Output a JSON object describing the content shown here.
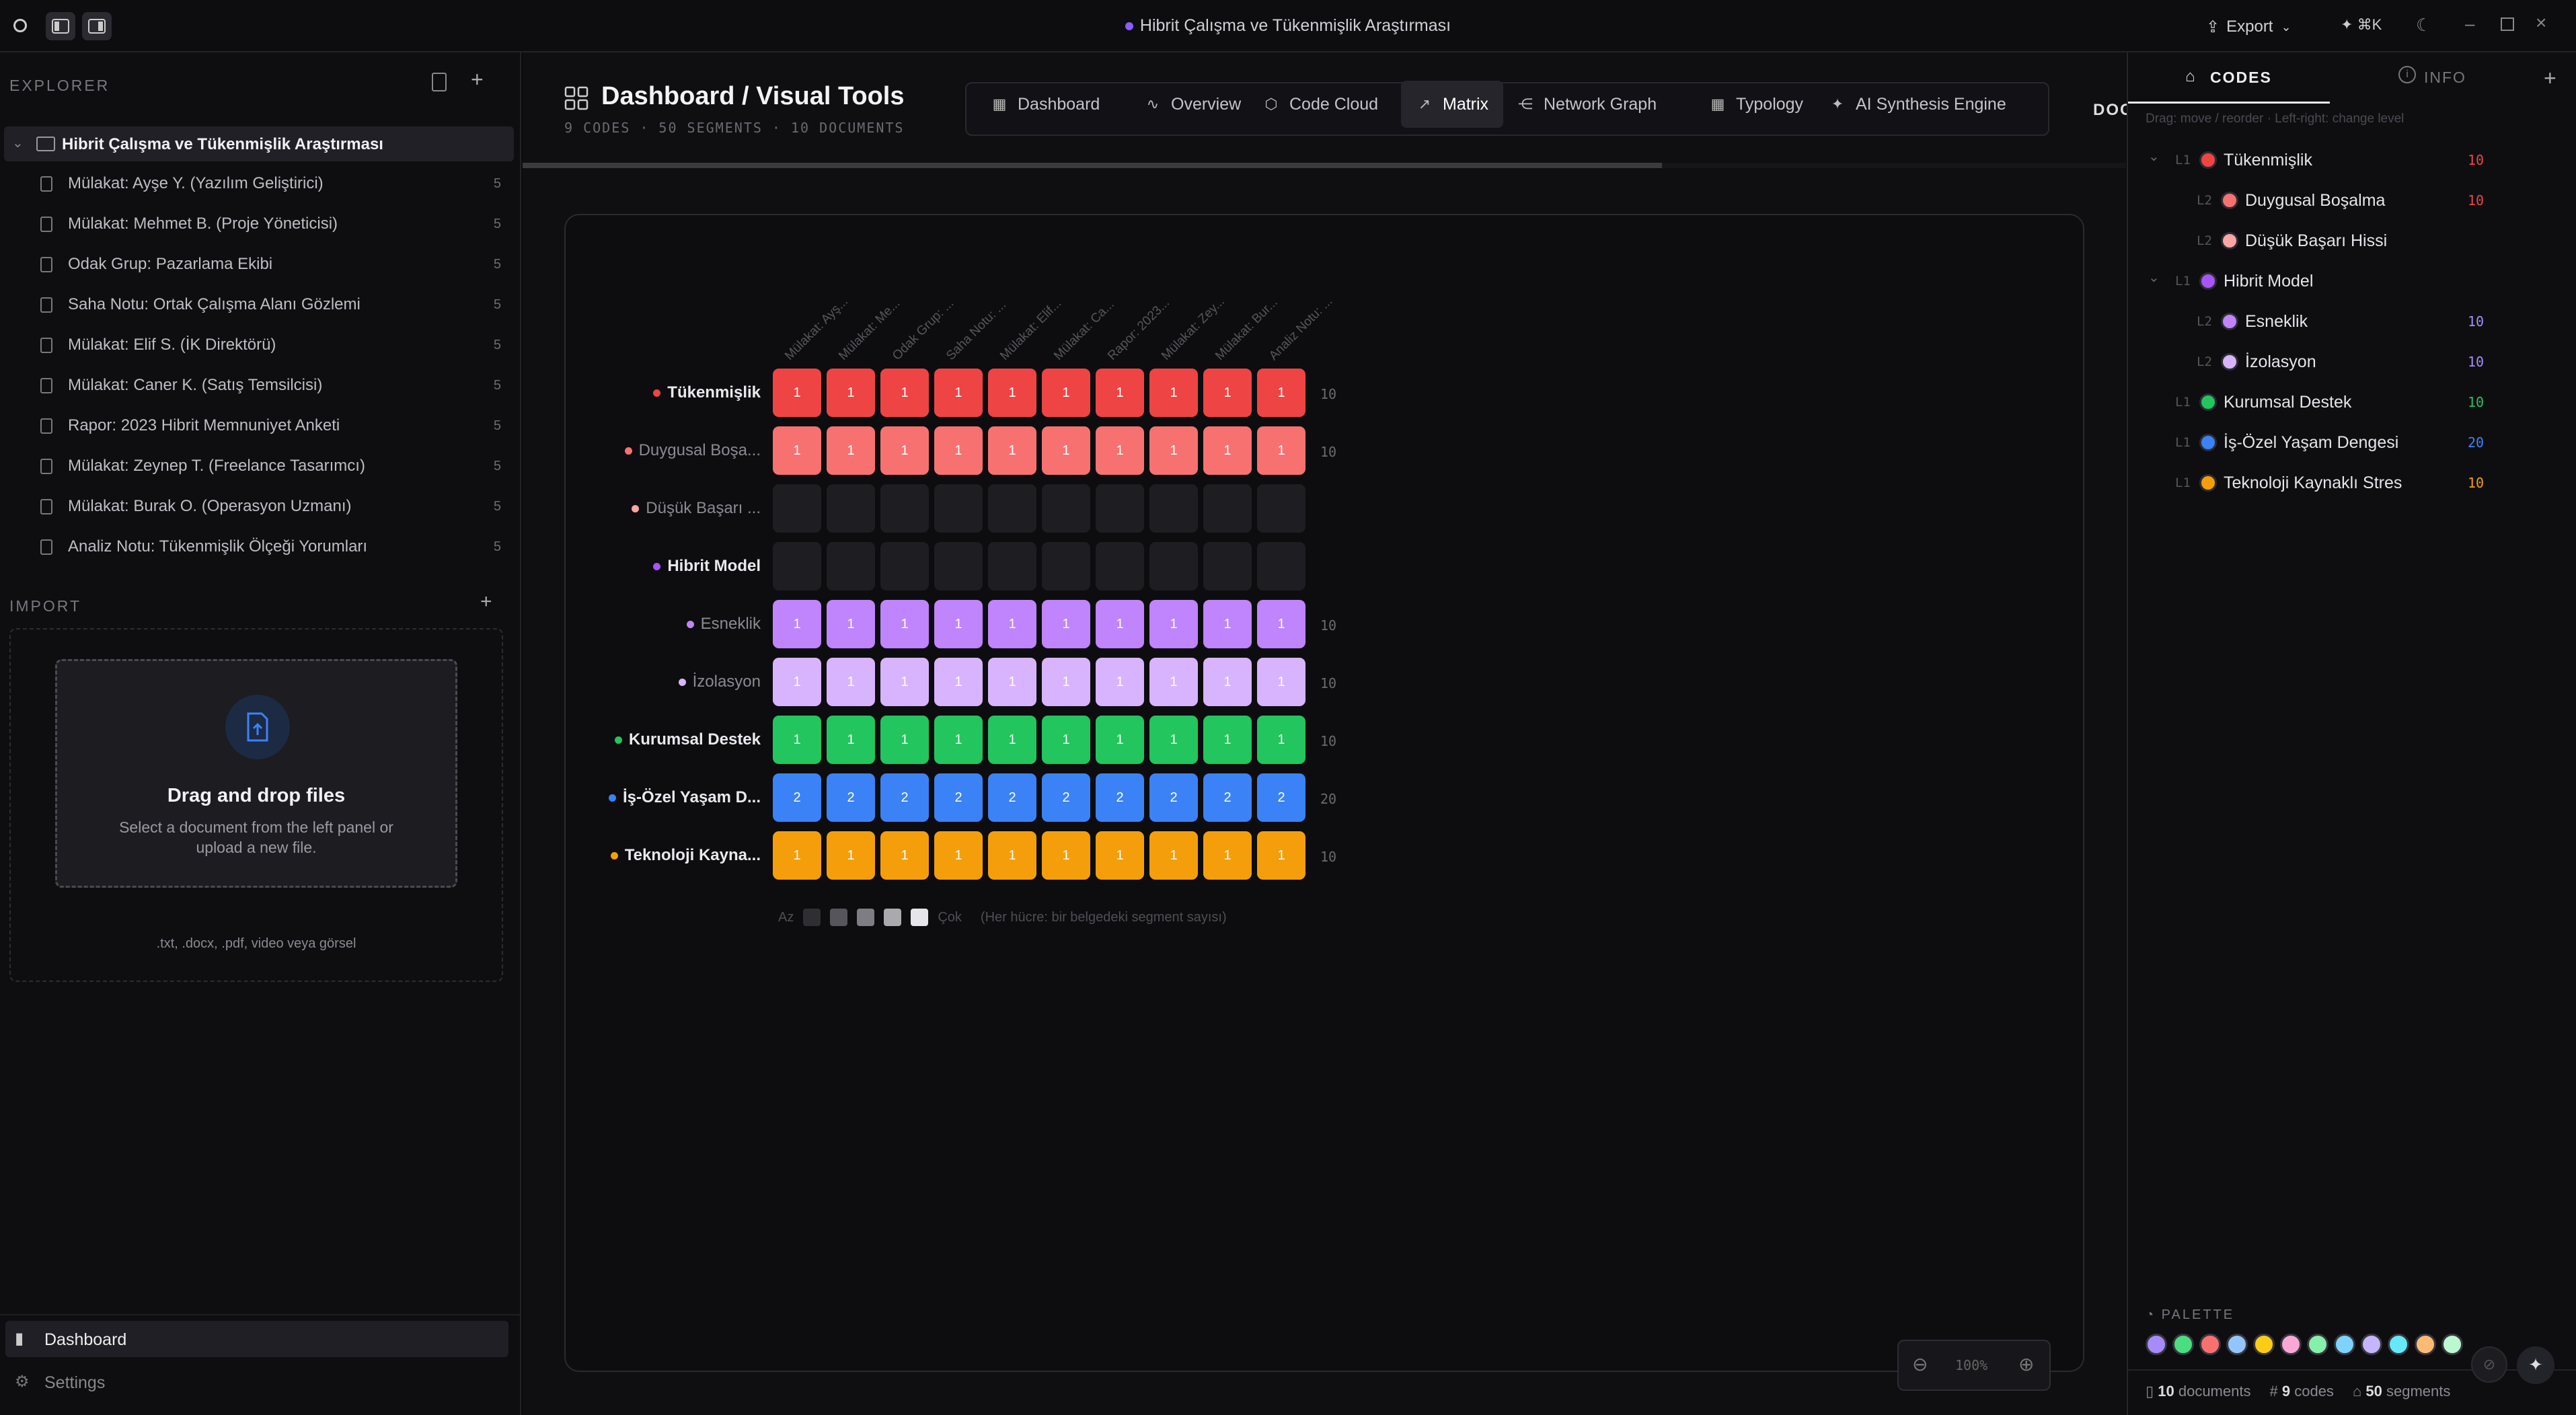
{
  "app": {
    "title": "Hibrit Çalışma ve Tükenmişlik Araştırması",
    "export_label": "Export",
    "shortcut": "⌘K"
  },
  "explorer": {
    "label": "EXPLORER",
    "project": "Hibrit Çalışma ve Tükenmişlik Araştırması",
    "documents": [
      {
        "name": "Mülakat: Ayşe Y. (Yazılım Geliştirici)",
        "count": "5"
      },
      {
        "name": "Mülakat: Mehmet B. (Proje Yöneticisi)",
        "count": "5"
      },
      {
        "name": "Odak Grup: Pazarlama Ekibi",
        "count": "5"
      },
      {
        "name": "Saha Notu: Ortak Çalışma Alanı Gözlemi",
        "count": "5"
      },
      {
        "name": "Mülakat: Elif S. (İK Direktörü)",
        "count": "5"
      },
      {
        "name": "Mülakat: Caner K. (Satış Temsilcisi)",
        "count": "5"
      },
      {
        "name": "Rapor: 2023 Hibrit Memnuniyet Anketi",
        "count": "5"
      },
      {
        "name": "Mülakat: Zeynep T. (Freelance Tasarımcı)",
        "count": "5"
      },
      {
        "name": "Mülakat: Burak O. (Operasyon Uzmanı)",
        "count": "5"
      },
      {
        "name": "Analiz Notu: Tükenmişlik Ölçeği Yorumları",
        "count": "5"
      }
    ]
  },
  "import": {
    "label": "IMPORT",
    "drop_title": "Drag and drop files",
    "drop_sub": "Select a document from the left panel or upload a new file.",
    "formats": ".txt, .docx, .pdf, video veya görsel"
  },
  "nav": {
    "dashboard": "Dashboard",
    "settings": "Settings"
  },
  "header": {
    "title": "Dashboard / Visual Tools",
    "stats": "9 CODES · 50 SEGMENTS · 10 DOCUMENTS",
    "cut_label": "DOC",
    "tabs": [
      {
        "label": "Dashboard",
        "icon": "grid-icon"
      },
      {
        "label": "Overview",
        "icon": "activity-icon"
      },
      {
        "label": "Code Cloud",
        "icon": "cube-icon"
      },
      {
        "label": "Matrix",
        "icon": "trend-icon",
        "active": true
      },
      {
        "label": "Network Graph",
        "icon": "share-icon"
      },
      {
        "label": "Typology",
        "icon": "grid-icon"
      },
      {
        "label": "AI Synthesis Engine",
        "icon": "sparkles-icon"
      }
    ]
  },
  "matrix": {
    "columns": [
      "Mülakat: Ayş...",
      "Mülakat: Me...",
      "Odak Grup: ...",
      "Saha Notu: ...",
      "Mülakat: Elif...",
      "Mülakat: Ca...",
      "Rapor: 2023...",
      "Mülakat: Zey...",
      "Mülakat: Bur...",
      "Analiz Notu: ..."
    ],
    "rows": [
      {
        "label": "Tükenmişlik",
        "bold": true,
        "color": "#ef4444",
        "cell_color": "#ef4444",
        "values": [
          "1",
          "1",
          "1",
          "1",
          "1",
          "1",
          "1",
          "1",
          "1",
          "1"
        ],
        "total": "10"
      },
      {
        "label": "Duygusal Boşa...",
        "bold": false,
        "color": "#f87171",
        "cell_color": "#f87171",
        "values": [
          "1",
          "1",
          "1",
          "1",
          "1",
          "1",
          "1",
          "1",
          "1",
          "1"
        ],
        "total": "10"
      },
      {
        "label": "Düşük Başarı ...",
        "bold": false,
        "color": "#fca5a5",
        "cell_color": "",
        "values": [
          "",
          "",
          "",
          "",
          "",
          "",
          "",
          "",
          "",
          ""
        ],
        "total": ""
      },
      {
        "label": "Hibrit Model",
        "bold": true,
        "color": "#a855f7",
        "cell_color": "",
        "values": [
          "",
          "",
          "",
          "",
          "",
          "",
          "",
          "",
          "",
          ""
        ],
        "total": ""
      },
      {
        "label": "Esneklik",
        "bold": false,
        "color": "#c084fc",
        "cell_color": "#c084fc",
        "values": [
          "1",
          "1",
          "1",
          "1",
          "1",
          "1",
          "1",
          "1",
          "1",
          "1"
        ],
        "total": "10"
      },
      {
        "label": "İzolasyon",
        "bold": false,
        "color": "#d8b4fe",
        "cell_color": "#d8b4fe",
        "values": [
          "1",
          "1",
          "1",
          "1",
          "1",
          "1",
          "1",
          "1",
          "1",
          "1"
        ],
        "total": "10"
      },
      {
        "label": "Kurumsal Destek",
        "bold": true,
        "color": "#22c55e",
        "cell_color": "#22c55e",
        "values": [
          "1",
          "1",
          "1",
          "1",
          "1",
          "1",
          "1",
          "1",
          "1",
          "1"
        ],
        "total": "10"
      },
      {
        "label": "İş-Özel Yaşam D...",
        "bold": true,
        "color": "#3b82f6",
        "cell_color": "#3b82f6",
        "values": [
          "2",
          "2",
          "2",
          "2",
          "2",
          "2",
          "2",
          "2",
          "2",
          "2"
        ],
        "total": "20"
      },
      {
        "label": "Teknoloji Kayna...",
        "bold": true,
        "color": "#f59e0b",
        "cell_color": "#f59e0b",
        "values": [
          "1",
          "1",
          "1",
          "1",
          "1",
          "1",
          "1",
          "1",
          "1",
          "1"
        ],
        "total": "10"
      }
    ],
    "legend_low": "Az",
    "legend_high": "Çok",
    "legend_note": "(Her hücre: bir belgedeki segment sayısı)",
    "zoom": "100%"
  },
  "codes_panel": {
    "tab_codes": "CODES",
    "tab_info": "INFO",
    "hint": "Drag: move / reorder · Left-right: change level",
    "codes": [
      {
        "level": "L1",
        "name": "Tükenmişlik",
        "color": "#ef4444",
        "count": "10",
        "count_color": "#ef4444",
        "indent": 0,
        "chevron": true
      },
      {
        "level": "L2",
        "name": "Duygusal Boşalma",
        "color": "#f87171",
        "count": "10",
        "count_color": "#ef4444",
        "indent": 1,
        "chevron": false
      },
      {
        "level": "L2",
        "name": "Düşük Başarı Hissi",
        "color": "#fca5a5",
        "count": "",
        "count_color": "#ef4444",
        "indent": 1,
        "chevron": false
      },
      {
        "level": "L1",
        "name": "Hibrit Model",
        "color": "#a855f7",
        "count": "",
        "count_color": "#a855f7",
        "indent": 0,
        "chevron": true
      },
      {
        "level": "L2",
        "name": "Esneklik",
        "color": "#c084fc",
        "count": "10",
        "count_color": "#a78bfa",
        "indent": 1,
        "chevron": false
      },
      {
        "level": "L2",
        "name": "İzolasyon",
        "color": "#d8b4fe",
        "count": "10",
        "count_color": "#a78bfa",
        "indent": 1,
        "chevron": false
      },
      {
        "level": "L1",
        "name": "Kurumsal Destek",
        "color": "#22c55e",
        "count": "10",
        "count_color": "#22c55e",
        "indent": 0,
        "chevron": false
      },
      {
        "level": "L1",
        "name": "İş-Özel Yaşam Dengesi",
        "color": "#3b82f6",
        "count": "20",
        "count_color": "#3b82f6",
        "indent": 0,
        "chevron": false
      },
      {
        "level": "L1",
        "name": "Teknoloji Kaynaklı Stres",
        "color": "#f59e0b",
        "count": "10",
        "count_color": "#f59e0b",
        "indent": 0,
        "chevron": false
      }
    ],
    "palette_label": "PALETTE",
    "palette": [
      "#a78bfa",
      "#4ade80",
      "#f87171",
      "#93c5fd",
      "#facc15",
      "#f9a8d4",
      "#86efac",
      "#7dd3fc",
      "#c4b5fd",
      "#67e8f9",
      "#fdba74",
      "#bbf7d0"
    ],
    "footer": {
      "documents": "10",
      "documents_label": "documents",
      "codes": "9",
      "codes_label": "codes",
      "segments": "50",
      "segments_label": "segments"
    }
  }
}
